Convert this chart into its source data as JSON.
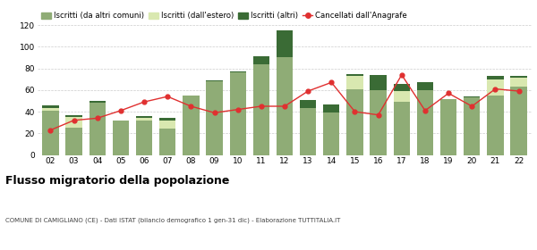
{
  "years": [
    "02",
    "03",
    "04",
    "05",
    "06",
    "07",
    "08",
    "09",
    "10",
    "11",
    "12",
    "13",
    "14",
    "15",
    "16",
    "17",
    "18",
    "19",
    "20",
    "21",
    "22"
  ],
  "iscritti_altri_comuni": [
    41,
    25,
    48,
    32,
    32,
    24,
    55,
    68,
    76,
    84,
    90,
    43,
    39,
    61,
    60,
    49,
    60,
    52,
    53,
    55,
    63
  ],
  "iscritti_estero": [
    2,
    10,
    0,
    0,
    2,
    8,
    0,
    0,
    0,
    0,
    0,
    0,
    0,
    12,
    0,
    10,
    0,
    0,
    0,
    15,
    8
  ],
  "iscritti_altri": [
    3,
    2,
    2,
    0,
    2,
    2,
    0,
    1,
    1,
    7,
    25,
    8,
    8,
    2,
    14,
    7,
    7,
    0,
    1,
    3,
    2
  ],
  "cancellati": [
    23,
    32,
    34,
    41,
    49,
    54,
    45,
    39,
    42,
    45,
    45,
    59,
    67,
    40,
    37,
    74,
    41,
    57,
    45,
    61,
    59
  ],
  "color_altri_comuni": "#8fac76",
  "color_estero": "#d9e8b0",
  "color_altri": "#3a6b35",
  "color_cancellati": "#e03030",
  "ylim": [
    0,
    120
  ],
  "yticks": [
    0,
    20,
    40,
    60,
    80,
    100,
    120
  ],
  "title": "Flusso migratorio della popolazione",
  "subtitle": "COMUNE DI CAMIGLIANO (CE) - Dati ISTAT (bilancio demografico 1 gen-31 dic) - Elaborazione TUTTITALIA.IT",
  "legend_labels": [
    "Iscritti (da altri comuni)",
    "Iscritti (dall'estero)",
    "Iscritti (altri)",
    "Cancellati dall'Anagrafe"
  ],
  "bg_color": "#ffffff",
  "grid_color": "#cccccc"
}
